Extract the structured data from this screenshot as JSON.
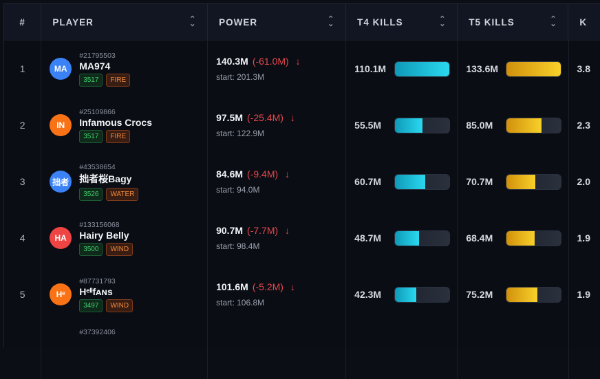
{
  "headers": {
    "rank": "#",
    "player": "PLAYER",
    "power": "POWER",
    "t4": "T4 KILLS",
    "t5": "T5 KILLS",
    "k": "K"
  },
  "colors": {
    "t4_bar": "#22c7e3",
    "t5_bar": "#f0c020",
    "decrease": "#e5484d",
    "server_tag": "#3fcf6c",
    "element_tag": "#f08a3a"
  },
  "rows": [
    {
      "rank": "1",
      "avatar": "MA",
      "avatar_color": "#3b82f6",
      "id": "#21795503",
      "name": "MA974",
      "server": "3517",
      "element": "FIRE",
      "power": "140.3M",
      "delta": "(-61.0M)",
      "start": "start: 201.3M",
      "t4": "110.1M",
      "t4_value": 110.1,
      "t5": "133.6M",
      "t5_value": 133.6,
      "k": "3.8"
    },
    {
      "rank": "2",
      "avatar": "IN",
      "avatar_color": "#f97316",
      "id": "#25109866",
      "name": "Infamous Crocs",
      "server": "3517",
      "element": "FIRE",
      "power": "97.5M",
      "delta": "(-25.4M)",
      "start": "start: 122.9M",
      "t4": "55.5M",
      "t4_value": 55.5,
      "t5": "85.0M",
      "t5_value": 85.0,
      "k": "2.3"
    },
    {
      "rank": "3",
      "avatar": "拙者",
      "avatar_color": "#3b82f6",
      "id": "#43538654",
      "name": "拙者桜Bagy",
      "server": "3526",
      "element": "WATER",
      "power": "84.6M",
      "delta": "(-9.4M)",
      "start": "start: 94.0M",
      "t4": "60.7M",
      "t4_value": 60.7,
      "t5": "70.7M",
      "t5_value": 70.7,
      "k": "2.0"
    },
    {
      "rank": "4",
      "avatar": "HA",
      "avatar_color": "#ef4444",
      "id": "#133156068",
      "name": "Hairy Belly",
      "server": "3500",
      "element": "WIND",
      "power": "90.7M",
      "delta": "(-7.7M)",
      "start": "start: 98.4M",
      "t4": "48.7M",
      "t4_value": 48.7,
      "t5": "68.4M",
      "t5_value": 68.4,
      "k": "1.9"
    },
    {
      "rank": "5",
      "avatar": "Hᵉ",
      "avatar_color": "#f97316",
      "id": "#87731793",
      "name": "Hᵉˡˡfᴀɴs",
      "server": "3497",
      "element": "WIND",
      "power": "101.6M",
      "delta": "(-5.2M)",
      "start": "start: 106.8M",
      "t4": "42.3M",
      "t4_value": 42.3,
      "t5": "75.2M",
      "t5_value": 75.2,
      "k": "1.9"
    },
    {
      "rank": "",
      "avatar": "",
      "avatar_color": "#0a0d14",
      "id": "#37392406",
      "name": "",
      "server": "",
      "element": "",
      "power": "",
      "delta": "",
      "start": "",
      "t4": "",
      "t4_value": 0,
      "t5": "",
      "t5_value": 0,
      "k": ""
    }
  ]
}
